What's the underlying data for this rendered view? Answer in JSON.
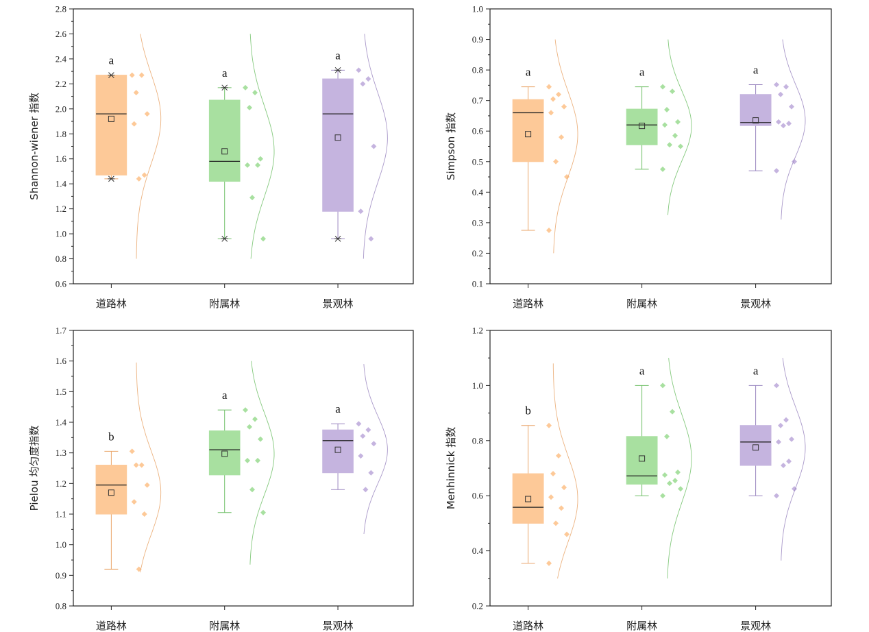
{
  "chart_data": [
    {
      "type": "box",
      "ylabel": "Shannon-wiener 指数",
      "ylim": [
        0.6,
        2.8
      ],
      "yticks": [
        0.6,
        0.8,
        1.0,
        1.2,
        1.4,
        1.6,
        1.8,
        2.0,
        2.2,
        2.4,
        2.6,
        2.8
      ],
      "categories": [
        "道路林",
        "附属林",
        "景观林"
      ],
      "series": [
        {
          "category": "道路林",
          "color": "#fdc998",
          "min": 1.44,
          "q1": 1.47,
          "median": 1.96,
          "q3": 2.27,
          "max": 2.27,
          "mean": 1.92,
          "sig": "a",
          "outlier_marks": true,
          "points": [
            2.27,
            2.27,
            2.13,
            1.96,
            1.88,
            1.47,
            1.44
          ],
          "dist": [
            0.8,
            2.6
          ]
        },
        {
          "category": "附属林",
          "color": "#a8e0a0",
          "min": 0.96,
          "q1": 1.42,
          "median": 1.58,
          "q3": 2.07,
          "max": 2.17,
          "mean": 1.66,
          "sig": "a",
          "outlier_marks": true,
          "points": [
            2.17,
            2.13,
            2.01,
            1.6,
            1.55,
            1.55,
            1.29,
            0.96
          ],
          "dist": [
            0.8,
            2.6
          ]
        },
        {
          "category": "景观林",
          "color": "#c5b4df",
          "min": 0.96,
          "q1": 1.18,
          "median": 1.96,
          "q3": 2.24,
          "max": 2.31,
          "mean": 1.77,
          "sig": "a",
          "outlier_marks": true,
          "points": [
            2.31,
            2.24,
            2.2,
            1.7,
            1.18,
            0.96
          ],
          "dist": [
            0.8,
            2.6
          ]
        }
      ]
    },
    {
      "type": "box",
      "ylabel": "Simpson 指数",
      "ylim": [
        0.1,
        1.0
      ],
      "yticks": [
        0.1,
        0.2,
        0.3,
        0.4,
        0.5,
        0.6,
        0.7,
        0.8,
        0.9,
        1.0
      ],
      "categories": [
        "道路林",
        "附属林",
        "景观林"
      ],
      "series": [
        {
          "category": "道路林",
          "color": "#fdc998",
          "min": 0.275,
          "q1": 0.5,
          "median": 0.66,
          "q3": 0.703,
          "max": 0.745,
          "mean": 0.59,
          "sig": "a",
          "outlier_marks": false,
          "points": [
            0.745,
            0.72,
            0.705,
            0.68,
            0.66,
            0.58,
            0.5,
            0.45,
            0.275
          ],
          "dist": [
            0.2,
            0.9
          ]
        },
        {
          "category": "附属林",
          "color": "#a8e0a0",
          "min": 0.475,
          "q1": 0.555,
          "median": 0.62,
          "q3": 0.672,
          "max": 0.745,
          "mean": 0.617,
          "sig": "a",
          "outlier_marks": false,
          "points": [
            0.745,
            0.73,
            0.67,
            0.63,
            0.62,
            0.585,
            0.555,
            0.55,
            0.475
          ],
          "dist": [
            0.325,
            0.9
          ]
        },
        {
          "category": "景观林",
          "color": "#c5b4df",
          "min": 0.47,
          "q1": 0.618,
          "median": 0.628,
          "q3": 0.72,
          "max": 0.752,
          "mean": 0.635,
          "sig": "a",
          "outlier_marks": false,
          "points": [
            0.752,
            0.745,
            0.72,
            0.68,
            0.63,
            0.625,
            0.618,
            0.5,
            0.47
          ],
          "dist": [
            0.31,
            0.9
          ]
        }
      ]
    },
    {
      "type": "box",
      "ylabel": "Pielou 均匀度指数",
      "ylim": [
        0.8,
        1.7
      ],
      "yticks": [
        0.8,
        0.9,
        1.0,
        1.1,
        1.2,
        1.3,
        1.4,
        1.5,
        1.6,
        1.7
      ],
      "categories": [
        "道路林",
        "附属林",
        "景观林"
      ],
      "series": [
        {
          "category": "道路林",
          "color": "#fdc998",
          "min": 0.92,
          "q1": 1.1,
          "median": 1.195,
          "q3": 1.26,
          "max": 1.305,
          "mean": 1.17,
          "sig": "b",
          "outlier_marks": false,
          "points": [
            1.305,
            1.26,
            1.26,
            1.195,
            1.14,
            1.1,
            0.92
          ],
          "dist": [
            0.91,
            1.595
          ]
        },
        {
          "category": "附属林",
          "color": "#a8e0a0",
          "min": 1.105,
          "q1": 1.228,
          "median": 1.31,
          "q3": 1.372,
          "max": 1.44,
          "mean": 1.297,
          "sig": "a",
          "outlier_marks": false,
          "points": [
            1.44,
            1.41,
            1.385,
            1.345,
            1.275,
            1.275,
            1.18,
            1.105
          ],
          "dist": [
            0.935,
            1.6
          ]
        },
        {
          "category": "景观林",
          "color": "#c5b4df",
          "min": 1.18,
          "q1": 1.235,
          "median": 1.34,
          "q3": 1.375,
          "max": 1.395,
          "mean": 1.31,
          "sig": "a",
          "outlier_marks": false,
          "points": [
            1.395,
            1.375,
            1.355,
            1.33,
            1.29,
            1.235,
            1.18
          ],
          "dist": [
            1.035,
            1.59
          ]
        }
      ]
    },
    {
      "type": "box",
      "ylabel": "Menhinnick 指数",
      "ylim": [
        0.2,
        1.2
      ],
      "yticks": [
        0.2,
        0.4,
        0.6,
        0.8,
        1.0,
        1.2
      ],
      "categories": [
        "道路林",
        "附属林",
        "景观林"
      ],
      "series": [
        {
          "category": "道路林",
          "color": "#fdc998",
          "min": 0.355,
          "q1": 0.5,
          "median": 0.558,
          "q3": 0.68,
          "max": 0.855,
          "mean": 0.588,
          "sig": "b",
          "outlier_marks": false,
          "points": [
            0.855,
            0.745,
            0.68,
            0.63,
            0.595,
            0.555,
            0.5,
            0.46,
            0.355
          ],
          "dist": [
            0.3,
            1.08
          ]
        },
        {
          "category": "附属林",
          "color": "#a8e0a0",
          "min": 0.6,
          "q1": 0.642,
          "median": 0.672,
          "q3": 0.815,
          "max": 1.0,
          "mean": 0.735,
          "sig": "a",
          "outlier_marks": false,
          "points": [
            1.0,
            0.905,
            0.815,
            0.685,
            0.675,
            0.655,
            0.645,
            0.625,
            0.6
          ],
          "dist": [
            0.3,
            1.1
          ]
        },
        {
          "category": "景观林",
          "color": "#c5b4df",
          "min": 0.6,
          "q1": 0.71,
          "median": 0.795,
          "q3": 0.855,
          "max": 1.0,
          "mean": 0.775,
          "sig": "a",
          "outlier_marks": false,
          "points": [
            1.0,
            0.875,
            0.855,
            0.805,
            0.795,
            0.725,
            0.71,
            0.625,
            0.6
          ],
          "dist": [
            0.365,
            1.1
          ]
        }
      ]
    }
  ]
}
